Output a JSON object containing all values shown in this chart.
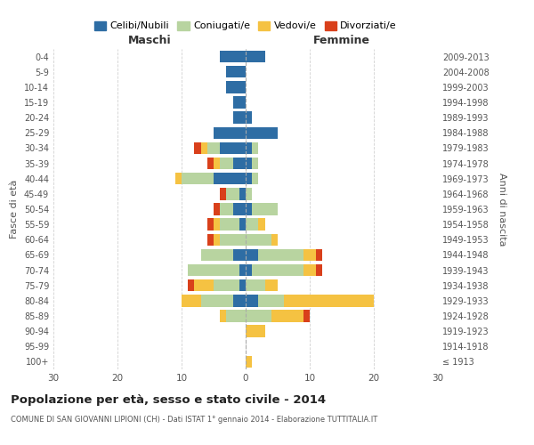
{
  "age_groups": [
    "100+",
    "95-99",
    "90-94",
    "85-89",
    "80-84",
    "75-79",
    "70-74",
    "65-69",
    "60-64",
    "55-59",
    "50-54",
    "45-49",
    "40-44",
    "35-39",
    "30-34",
    "25-29",
    "20-24",
    "15-19",
    "10-14",
    "5-9",
    "0-4"
  ],
  "birth_years": [
    "≤ 1913",
    "1914-1918",
    "1919-1923",
    "1924-1928",
    "1929-1933",
    "1934-1938",
    "1939-1943",
    "1944-1948",
    "1949-1953",
    "1954-1958",
    "1959-1963",
    "1964-1968",
    "1969-1973",
    "1974-1978",
    "1979-1983",
    "1984-1988",
    "1989-1993",
    "1994-1998",
    "1999-2003",
    "2004-2008",
    "2009-2013"
  ],
  "maschi": {
    "celibi": [
      0,
      0,
      0,
      0,
      2,
      1,
      1,
      2,
      0,
      1,
      2,
      1,
      5,
      2,
      4,
      5,
      2,
      2,
      3,
      3,
      4
    ],
    "coniugati": [
      0,
      0,
      0,
      3,
      5,
      4,
      8,
      5,
      4,
      3,
      2,
      2,
      5,
      2,
      2,
      0,
      0,
      0,
      0,
      0,
      0
    ],
    "vedovi": [
      0,
      0,
      0,
      1,
      3,
      3,
      0,
      0,
      1,
      1,
      0,
      0,
      1,
      1,
      1,
      0,
      0,
      0,
      0,
      0,
      0
    ],
    "divorziati": [
      0,
      0,
      0,
      0,
      0,
      1,
      0,
      0,
      1,
      1,
      1,
      1,
      0,
      1,
      1,
      0,
      0,
      0,
      0,
      0,
      0
    ]
  },
  "femmine": {
    "nubili": [
      0,
      0,
      0,
      0,
      2,
      0,
      1,
      2,
      0,
      0,
      1,
      0,
      1,
      1,
      1,
      5,
      1,
      0,
      0,
      0,
      3
    ],
    "coniugate": [
      0,
      0,
      0,
      4,
      4,
      3,
      8,
      7,
      4,
      2,
      4,
      1,
      1,
      1,
      1,
      0,
      0,
      0,
      0,
      0,
      0
    ],
    "vedove": [
      1,
      0,
      3,
      5,
      14,
      2,
      2,
      2,
      1,
      1,
      0,
      0,
      0,
      0,
      0,
      0,
      0,
      0,
      0,
      0,
      0
    ],
    "divorziate": [
      0,
      0,
      0,
      1,
      0,
      0,
      1,
      1,
      0,
      0,
      0,
      0,
      0,
      0,
      0,
      0,
      0,
      0,
      0,
      0,
      0
    ]
  },
  "colors": {
    "celibi_nubili": "#2e6da4",
    "coniugati": "#b8d4a0",
    "vedovi": "#f5c242",
    "divorziati": "#d9401b"
  },
  "title": "Popolazione per età, sesso e stato civile - 2014",
  "subtitle": "COMUNE DI SAN GIOVANNI LIPIONI (CH) - Dati ISTAT 1° gennaio 2014 - Elaborazione TUTTITALIA.IT",
  "ylabel_left": "Fasce di età",
  "ylabel_right": "Anni di nascita",
  "xlabel_maschi": "Maschi",
  "xlabel_femmine": "Femmine",
  "xlim": 30,
  "background_color": "#ffffff",
  "grid_color": "#cccccc"
}
